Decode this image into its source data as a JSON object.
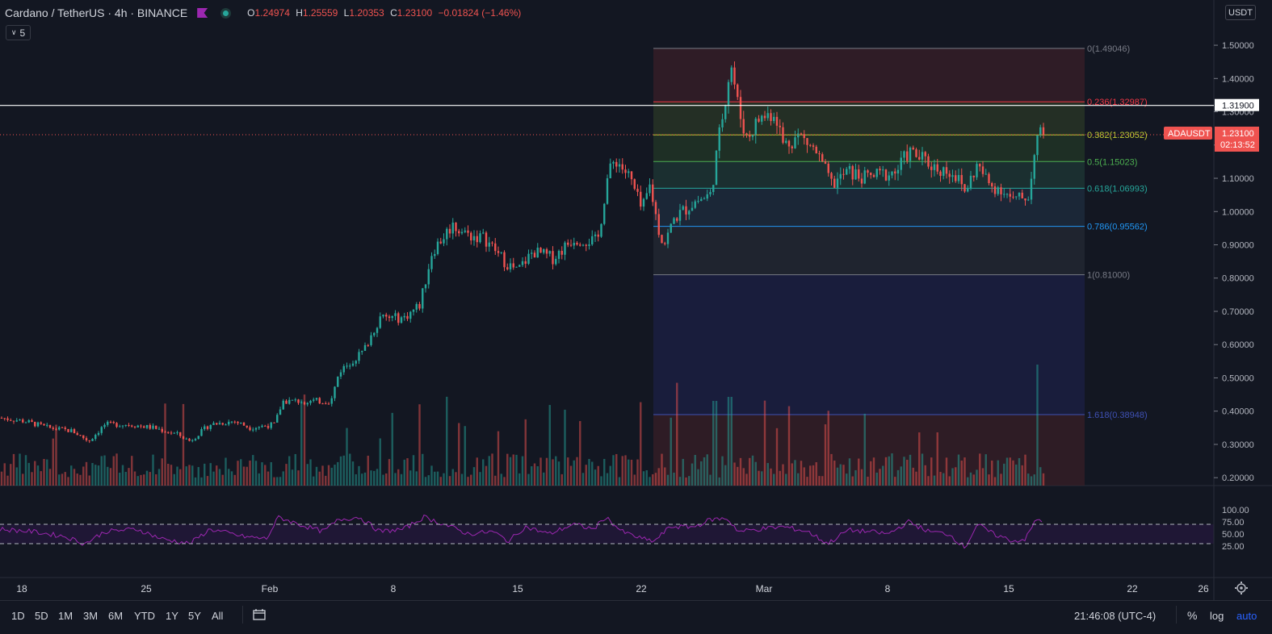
{
  "header": {
    "symbol": "Cardano / TetherUS · 4h · BINANCE",
    "open_label": "O",
    "open": "1.24974",
    "high_label": "H",
    "high": "1.25559",
    "low_label": "L",
    "low": "1.20353",
    "close_label": "C",
    "close": "1.23100",
    "change": "−0.01824 (−1.46%)",
    "indicator_count": "5"
  },
  "price_axis": {
    "currency": "USDT",
    "ticks": [
      "1.50000",
      "1.40000",
      "1.30000",
      "1.20000",
      "1.10000",
      "1.00000",
      "0.90000",
      "0.80000",
      "0.70000",
      "0.60000",
      "0.50000",
      "0.40000",
      "0.30000",
      "0.20000"
    ],
    "horizontal_line_label": "1.31900",
    "symbol_tag": "ADAUSDT",
    "last_price": "1.23100",
    "countdown": "02:13:52"
  },
  "rsi_axis": {
    "ticks": [
      "100.00",
      "75.00",
      "50.00",
      "25.00"
    ]
  },
  "fib": {
    "levels": [
      {
        "label": "0(1.49046)",
        "price": 1.49046,
        "color": "#787b86"
      },
      {
        "label": "0.236(1.32987)",
        "price": 1.32987,
        "color": "#f23645"
      },
      {
        "label": "0.382(1.23052)",
        "price": 1.23052,
        "color": "#c0ca33"
      },
      {
        "label": "0.5(1.15023)",
        "price": 1.15023,
        "color": "#4caf50"
      },
      {
        "label": "0.618(1.06993)",
        "price": 1.06993,
        "color": "#26a69a"
      },
      {
        "label": "0.786(0.95562)",
        "price": 0.95562,
        "color": "#2196f3"
      },
      {
        "label": "1(0.81000)",
        "price": 0.81,
        "color": "#787b86"
      },
      {
        "label": "1.618(0.38948)",
        "price": 0.38948,
        "color": "#3f51b5"
      }
    ]
  },
  "time_axis": {
    "labels": [
      "18",
      "25",
      "Feb",
      "8",
      "15",
      "22",
      "Mar",
      "8",
      "15",
      "22",
      "26"
    ]
  },
  "bottom_bar": {
    "timeframes": [
      "1D",
      "5D",
      "1M",
      "3M",
      "6M",
      "YTD",
      "1Y",
      "5Y",
      "All"
    ],
    "clock": "21:46:08 (UTC-4)",
    "percent": "%",
    "log": "log",
    "auto": "auto"
  },
  "colors": {
    "up": "#26a69a",
    "down": "#ef5350",
    "rsi": "#9c27b0",
    "background": "#131722"
  },
  "chart_data": {
    "type": "candlestick",
    "symbol": "ADAUSDT",
    "interval": "4h",
    "ylim": [
      0.15,
      1.55
    ],
    "keypoints_close": [
      [
        0,
        0.38
      ],
      [
        30,
        0.37
      ],
      [
        60,
        0.35
      ],
      [
        90,
        0.34
      ],
      [
        110,
        0.31
      ],
      [
        130,
        0.36
      ],
      [
        160,
        0.36
      ],
      [
        190,
        0.35
      ],
      [
        220,
        0.33
      ],
      [
        235,
        0.31
      ],
      [
        260,
        0.36
      ],
      [
        290,
        0.37
      ],
      [
        310,
        0.35
      ],
      [
        340,
        0.36
      ],
      [
        350,
        0.43
      ],
      [
        380,
        0.43
      ],
      [
        410,
        0.43
      ],
      [
        420,
        0.52
      ],
      [
        450,
        0.58
      ],
      [
        470,
        0.68
      ],
      [
        500,
        0.68
      ],
      [
        520,
        0.72
      ],
      [
        535,
        0.88
      ],
      [
        560,
        0.96
      ],
      [
        580,
        0.93
      ],
      [
        600,
        0.92
      ],
      [
        625,
        0.85
      ],
      [
        640,
        0.82
      ],
      [
        660,
        0.88
      ],
      [
        685,
        0.86
      ],
      [
        710,
        0.92
      ],
      [
        740,
        0.91
      ],
      [
        752,
        1.1
      ],
      [
        762,
        1.16
      ],
      [
        780,
        1.1
      ],
      [
        795,
        1.0
      ],
      [
        805,
        1.08
      ],
      [
        815,
        0.95
      ],
      [
        822,
        0.9
      ],
      [
        835,
        0.98
      ],
      [
        860,
        1.03
      ],
      [
        880,
        1.05
      ],
      [
        892,
        1.25
      ],
      [
        905,
        1.45
      ],
      [
        915,
        1.3
      ],
      [
        925,
        1.22
      ],
      [
        940,
        1.28
      ],
      [
        960,
        1.3
      ],
      [
        970,
        1.2
      ],
      [
        990,
        1.23
      ],
      [
        1010,
        1.18
      ],
      [
        1030,
        1.08
      ],
      [
        1050,
        1.12
      ],
      [
        1070,
        1.1
      ],
      [
        1090,
        1.11
      ],
      [
        1110,
        1.12
      ],
      [
        1125,
        1.18
      ],
      [
        1140,
        1.16
      ],
      [
        1160,
        1.13
      ],
      [
        1180,
        1.12
      ],
      [
        1195,
        1.06
      ],
      [
        1210,
        1.14
      ],
      [
        1225,
        1.08
      ],
      [
        1240,
        1.07
      ],
      [
        1255,
        1.03
      ],
      [
        1275,
        1.05
      ],
      [
        1282,
        1.22
      ],
      [
        1290,
        1.231
      ]
    ],
    "rsi_keypoints": [
      [
        0,
        60
      ],
      [
        40,
        55
      ],
      [
        80,
        45
      ],
      [
        105,
        30
      ],
      [
        130,
        55
      ],
      [
        170,
        60
      ],
      [
        200,
        40
      ],
      [
        235,
        30
      ],
      [
        260,
        60
      ],
      [
        300,
        45
      ],
      [
        330,
        40
      ],
      [
        345,
        85
      ],
      [
        370,
        70
      ],
      [
        400,
        55
      ],
      [
        420,
        80
      ],
      [
        445,
        85
      ],
      [
        470,
        55
      ],
      [
        500,
        60
      ],
      [
        525,
        85
      ],
      [
        550,
        70
      ],
      [
        580,
        50
      ],
      [
        610,
        55
      ],
      [
        630,
        35
      ],
      [
        650,
        65
      ],
      [
        680,
        50
      ],
      [
        710,
        70
      ],
      [
        735,
        60
      ],
      [
        750,
        85
      ],
      [
        770,
        55
      ],
      [
        795,
        40
      ],
      [
        810,
        35
      ],
      [
        830,
        65
      ],
      [
        860,
        65
      ],
      [
        880,
        80
      ],
      [
        900,
        82
      ],
      [
        915,
        55
      ],
      [
        940,
        60
      ],
      [
        970,
        65
      ],
      [
        1000,
        55
      ],
      [
        1025,
        30
      ],
      [
        1050,
        58
      ],
      [
        1075,
        55
      ],
      [
        1100,
        50
      ],
      [
        1125,
        75
      ],
      [
        1150,
        55
      ],
      [
        1175,
        50
      ],
      [
        1195,
        22
      ],
      [
        1210,
        70
      ],
      [
        1230,
        50
      ],
      [
        1255,
        35
      ],
      [
        1270,
        40
      ],
      [
        1283,
        80
      ],
      [
        1290,
        78
      ]
    ],
    "time_axis": [
      "18",
      "25",
      "Feb",
      "8",
      "15",
      "22",
      "Mar",
      "8",
      "15",
      "22",
      "26"
    ],
    "fib_retracement": {
      "from": 0.81,
      "to": 1.49046
    },
    "horizontal_line": 1.319,
    "rsi_bands": [
      30,
      70
    ]
  }
}
